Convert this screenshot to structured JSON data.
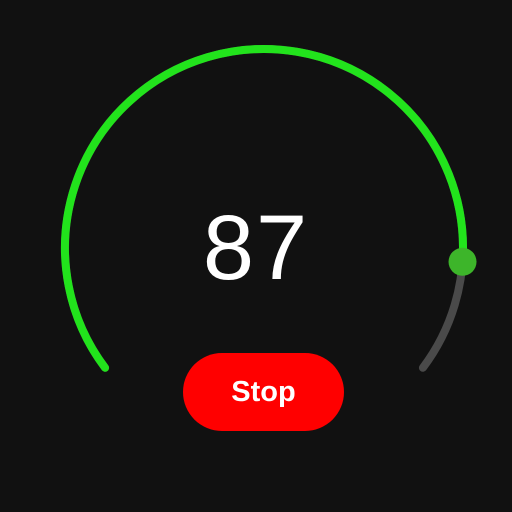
{
  "gauge": {
    "value": "87",
    "level_fraction": 0.87,
    "colors": {
      "progress": "#22e31c",
      "track": "#4a4a4a",
      "knob": "#3db52a"
    }
  },
  "controls": {
    "stop_label": "Stop",
    "stop_color": "#ff0000"
  }
}
